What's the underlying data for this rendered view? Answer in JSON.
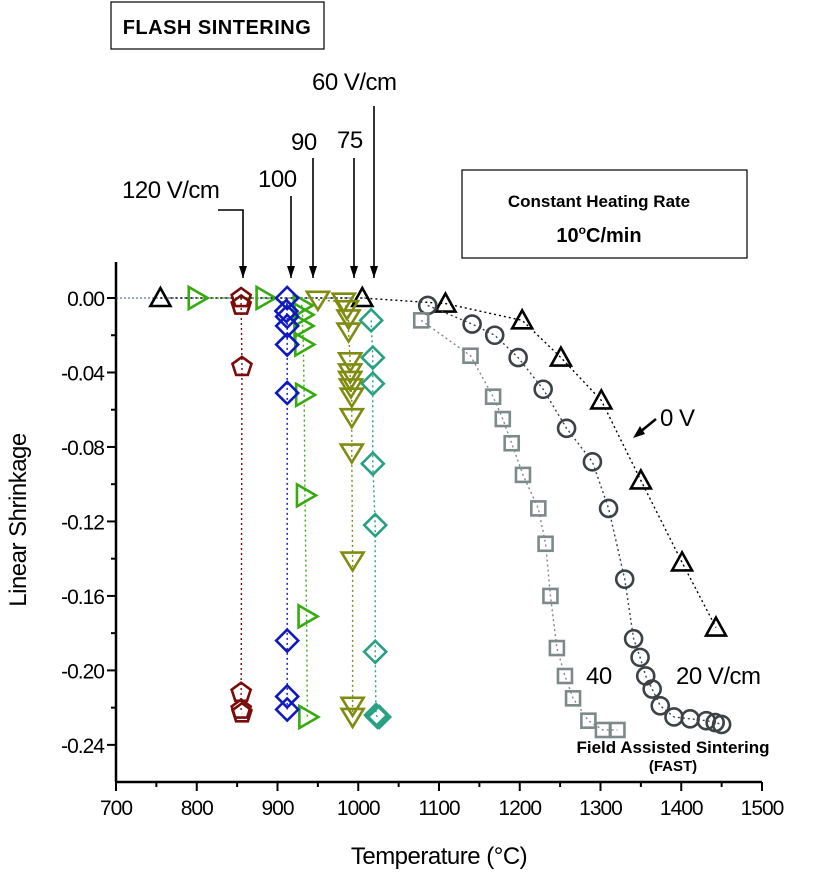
{
  "chart_data": {
    "type": "scatter",
    "title": "",
    "xlabel": "Temperature (°C)",
    "ylabel": "Linear Shrinkage",
    "xlim": [
      700,
      1500
    ],
    "ylim": [
      -0.26,
      0.02
    ],
    "xticks": [
      700,
      800,
      900,
      1000,
      1100,
      1200,
      1300,
      1400,
      1500
    ],
    "xtick_labels": [
      "700",
      "800",
      "900",
      "1000",
      "1100",
      "1200",
      "1300",
      "1400",
      "1500"
    ],
    "yticks": [
      0.0,
      -0.04,
      -0.08,
      -0.12,
      -0.16,
      -0.2,
      -0.24
    ],
    "ytick_labels": [
      "0.00",
      "-0.04",
      "-0.08",
      "-0.12",
      "-0.16",
      "-0.20",
      "-0.24"
    ],
    "grid": false,
    "legend": "none",
    "series": [
      {
        "name": "0 V",
        "marker": "triangle-up",
        "color": "#000000",
        "line": "dotted",
        "x": [
          755,
          1005,
          1108,
          1203,
          1251,
          1301,
          1350,
          1401,
          1443
        ],
        "y": [
          0.0,
          0.0,
          -0.003,
          -0.012,
          -0.032,
          -0.055,
          -0.098,
          -0.142,
          -0.177
        ]
      },
      {
        "name": "20 V/cm",
        "marker": "circle",
        "color": "#3c4245",
        "line": "dotted",
        "x": [
          1086,
          1141,
          1169,
          1198,
          1229,
          1258,
          1290,
          1310,
          1330,
          1341,
          1349,
          1356,
          1364,
          1374,
          1391,
          1411,
          1431,
          1442,
          1450
        ],
        "y": [
          -0.004,
          -0.014,
          -0.02,
          -0.032,
          -0.049,
          -0.07,
          -0.088,
          -0.113,
          -0.151,
          -0.183,
          -0.193,
          -0.203,
          -0.21,
          -0.219,
          -0.225,
          -0.226,
          -0.227,
          -0.228,
          -0.229
        ]
      },
      {
        "name": "40 V/cm",
        "marker": "square",
        "color": "#7d8a89",
        "line": "dotted",
        "x": [
          1078,
          1139,
          1167,
          1179,
          1190,
          1204,
          1223,
          1232,
          1238,
          1246,
          1256,
          1266,
          1285,
          1303,
          1321
        ],
        "y": [
          -0.012,
          -0.031,
          -0.053,
          -0.065,
          -0.078,
          -0.095,
          -0.113,
          -0.132,
          -0.16,
          -0.188,
          -0.203,
          -0.215,
          -0.227,
          -0.232,
          -0.232
        ]
      },
      {
        "name": "60 V/cm",
        "marker": "diamond",
        "color": "#27a083",
        "line": "dotted",
        "x": [
          1016,
          1018,
          1018,
          1018,
          1021,
          1021,
          1022,
          1024,
          1026
        ],
        "y": [
          -0.012,
          -0.032,
          -0.046,
          -0.089,
          -0.122,
          -0.19,
          -0.224,
          -0.225,
          -0.225
        ]
      },
      {
        "name": "75 V/cm",
        "marker": "triangle-down",
        "color": "#7f8c10",
        "line": "dotted",
        "x": [
          950,
          982,
          986,
          988,
          988,
          990,
          990,
          990,
          991,
          992,
          992,
          992,
          993,
          993,
          993
        ],
        "y": [
          -0.001,
          -0.002,
          -0.006,
          -0.011,
          -0.018,
          -0.034,
          -0.04,
          -0.044,
          -0.048,
          -0.053,
          -0.064,
          -0.083,
          -0.141,
          -0.219,
          -0.225
        ]
      },
      {
        "name": "90 V/cm",
        "marker": "triangle-right",
        "color": "#35ab10",
        "line": "dotted",
        "x": [
          800,
          884,
          930,
          931,
          931,
          932,
          933,
          934,
          936,
          937
        ],
        "y": [
          0.0,
          0.0,
          -0.004,
          -0.009,
          -0.015,
          -0.025,
          -0.052,
          -0.106,
          -0.171,
          -0.225
        ]
      },
      {
        "name": "100 V/cm",
        "marker": "diamond",
        "color": "#1018c0",
        "line": "dotted",
        "x": [
          912,
          911,
          912,
          912,
          912,
          912,
          912,
          912,
          912
        ],
        "y": [
          0.0,
          -0.007,
          -0.01,
          -0.015,
          -0.025,
          -0.051,
          -0.184,
          -0.214,
          -0.221
        ]
      },
      {
        "name": "120 V/cm",
        "marker": "pentagon",
        "color": "#7a0c0c",
        "line": "dotted",
        "x": [
          855,
          855,
          856,
          855,
          855,
          856
        ],
        "y": [
          0.0,
          -0.004,
          -0.037,
          -0.212,
          -0.221,
          -0.223
        ]
      }
    ],
    "annotations": {
      "flash_title": "FLASH SINTERING",
      "heating_rate_line1": "Constant Heating Rate",
      "heating_rate_line2_prefix": "10",
      "heating_rate_line2_sup": "o",
      "heating_rate_line2_suffix": "C/min",
      "label_120": "120 V/cm",
      "label_100": "100",
      "label_90": "90",
      "label_75": "75",
      "label_60": "60 V/cm",
      "label_0v": "0 V",
      "label_40": "40",
      "label_20": "20 V/cm",
      "fast_line1": "Field Assisted Sintering",
      "fast_line2": "(FAST)"
    }
  }
}
